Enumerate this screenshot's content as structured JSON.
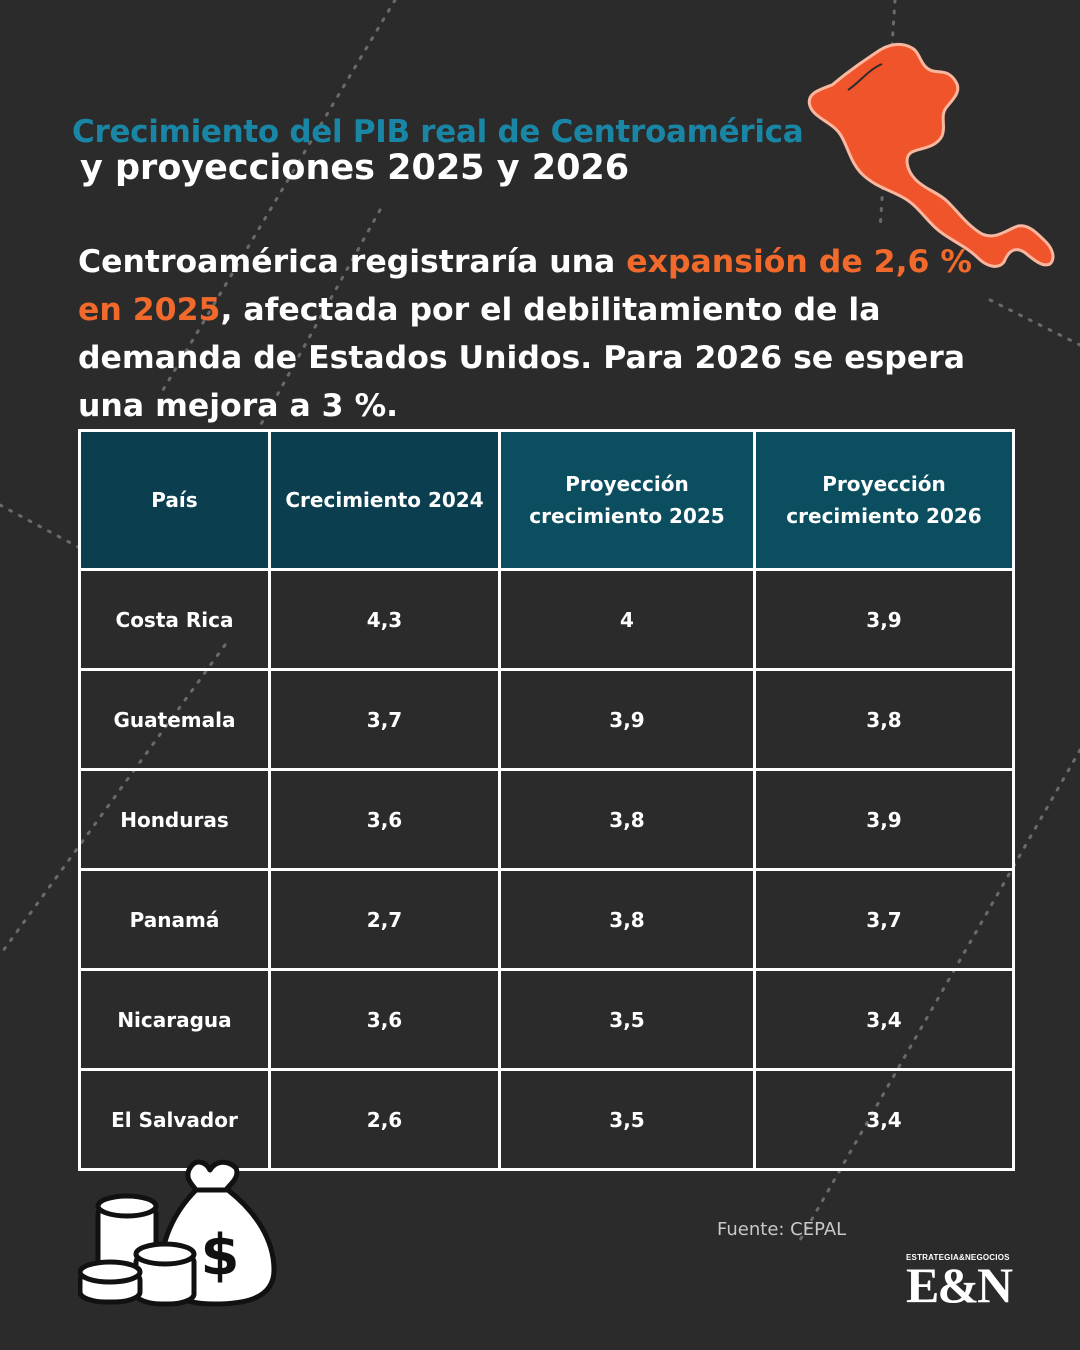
{
  "header": {
    "title_line1": "Crecimiento del PIB real de Centroamérica",
    "title_line2": "y proyecciones 2025 y 2026"
  },
  "lede": {
    "part1": "Centroamérica registraría una ",
    "highlight": "expansión de 2,6 % en 2025",
    "part2": ", afectada por el debilitamiento de la demanda de Estados Unidos. Para 2026 se espera una mejora a 3 %."
  },
  "colors": {
    "accent_blue": "#1a86a6",
    "accent_orange": "#f26a2b",
    "header_cell": "#0b4e60",
    "background": "#2b2b2b"
  },
  "table": {
    "headers": [
      "País",
      "Crecimiento 2024",
      "Proyección crecimiento 2025",
      "Proyección crecimiento 2026"
    ],
    "rows": [
      [
        "Costa Rica",
        "4,3",
        "4",
        "3,9"
      ],
      [
        "Guatemala",
        "3,7",
        "3,9",
        "3,8"
      ],
      [
        "Honduras",
        "3,6",
        "3,8",
        "3,9"
      ],
      [
        "Panamá",
        "2,7",
        "3,8",
        "3,7"
      ],
      [
        "Nicaragua",
        "3,6",
        "3,5",
        "3,4"
      ],
      [
        "El Salvador",
        "2,6",
        "3,5",
        "3,4"
      ]
    ]
  },
  "footer": {
    "source": "Fuente: CEPAL",
    "logo_small": "ESTRATEGIA&NEGOCIOS",
    "logo_big": "E&N"
  },
  "icons": [
    "central-america-map-icon",
    "money-bag-icon",
    "coins-icon"
  ]
}
